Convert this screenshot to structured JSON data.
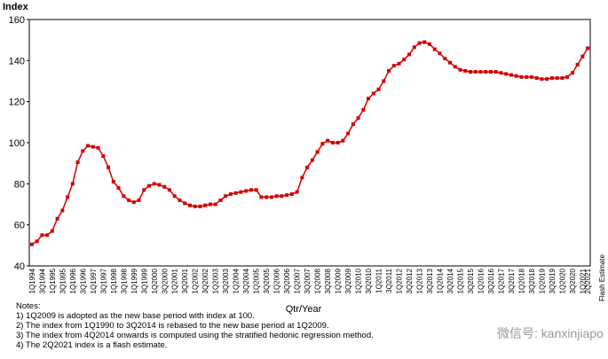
{
  "chart_data": {
    "type": "line",
    "y_label": "Index",
    "x_label": "Qtr/Year",
    "annotation": "Flash Estimate",
    "notes": [
      "Notes:",
      "1) 1Q2009 is adopted as the new base period with index at 100.",
      "2) The index from 1Q1990 to 3Q2014 is rebased to the new base period at 1Q2009.",
      "3) The index from 4Q2014 onwards is computed using the stratified hedonic regression method.",
      "4) The 2Q2021 index is a flash estimate."
    ],
    "watermark": "微信号: kanxinjiapo",
    "categories": [
      "1Q1994",
      null,
      "3Q1994",
      null,
      "1Q1995",
      null,
      "3Q1995",
      null,
      "1Q1996",
      null,
      "3Q1996",
      null,
      "1Q1997",
      null,
      "3Q1997",
      null,
      "1Q1998",
      null,
      "3Q1998",
      null,
      "1Q1999",
      null,
      "3Q1999",
      null,
      "1Q2000",
      null,
      "3Q2000",
      null,
      "1Q2001",
      null,
      "3Q2001",
      null,
      "1Q2002",
      null,
      "3Q2002",
      null,
      "1Q2003",
      null,
      "3Q2003",
      null,
      "1Q2004",
      null,
      "3Q2004",
      null,
      "1Q2005",
      null,
      "3Q2005",
      null,
      "1Q2006",
      null,
      "3Q2006",
      null,
      "1Q2007",
      null,
      "3Q2007",
      null,
      "1Q2008",
      null,
      "3Q2008",
      null,
      "1Q2009",
      null,
      "3Q2009",
      null,
      "1Q2010",
      null,
      "3Q2010",
      null,
      "1Q2011",
      null,
      "3Q2011",
      null,
      "1Q2012",
      null,
      "3Q2012",
      null,
      "1Q2013",
      null,
      "3Q2013",
      null,
      "1Q2014",
      null,
      "3Q2014",
      null,
      "1Q2015",
      null,
      "3Q2015",
      null,
      "1Q2016",
      null,
      "3Q2016",
      null,
      "1Q2017",
      null,
      "3Q2017",
      null,
      "1Q2018",
      null,
      "3Q2018",
      null,
      "1Q2019",
      null,
      "3Q2019",
      null,
      "1Q2020",
      null,
      "3Q2020",
      null,
      "1Q2021",
      "2Q2021"
    ],
    "values": [
      50.5,
      52,
      55,
      55,
      57,
      63,
      67,
      73.5,
      80,
      90.5,
      96,
      98.5,
      98,
      97.5,
      93.5,
      88,
      81,
      78,
      74,
      72,
      71,
      72,
      77,
      79,
      80,
      79.5,
      78.5,
      77,
      74,
      72,
      70.5,
      69.5,
      69,
      69,
      69.5,
      70,
      70,
      72,
      74,
      75,
      75.5,
      76,
      76.5,
      77,
      77,
      73.5,
      73.5,
      73.5,
      74,
      74,
      74.5,
      75,
      76,
      83,
      88,
      91.5,
      95.5,
      99.5,
      101,
      100,
      100,
      101,
      104.5,
      109,
      112,
      116,
      121.5,
      124,
      126,
      130,
      135,
      137.5,
      138.5,
      140.5,
      143,
      146.5,
      148.5,
      149,
      148,
      145.5,
      143.5,
      141,
      139,
      137,
      135.5,
      135,
      134.5,
      134.5,
      134.5,
      134.5,
      134.5,
      134.5,
      134,
      133.5,
      133,
      132.5,
      132,
      132,
      132,
      131.5,
      131,
      131,
      131.5,
      131.5,
      131.5,
      132,
      134,
      138,
      142,
      146
    ],
    "color": "#d40000",
    "ylim": [
      40,
      160
    ],
    "yticks": [
      40,
      60,
      80,
      100,
      120,
      140,
      160
    ],
    "grid": false
  }
}
